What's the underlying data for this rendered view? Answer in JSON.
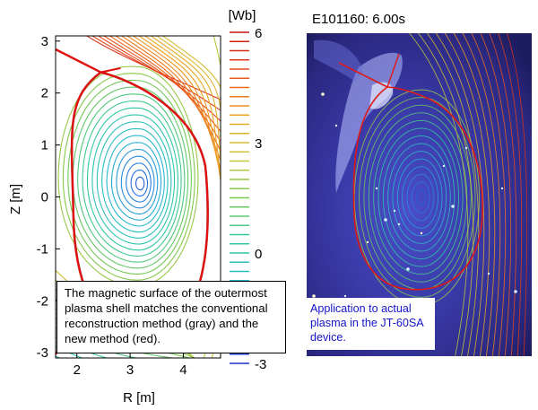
{
  "chart_data": [
    {
      "type": "contour",
      "panel": "equilibrium-flux-surfaces",
      "xlabel": "R [m]",
      "ylabel": "Z [m]",
      "xticks": [
        2,
        3,
        4
      ],
      "yticks": [
        3,
        2,
        1,
        0,
        -1,
        -2,
        -3
      ],
      "xlim": [
        1.6,
        4.7
      ],
      "ylim": [
        -3.1,
        3.1
      ],
      "magnetic_axis": {
        "R": 3.2,
        "Z": 0.25
      },
      "x_point": {
        "R": 2.45,
        "Z": 2.4
      },
      "series": [
        {
          "name": "conventional reconstruction",
          "color": "#808080"
        },
        {
          "name": "new method",
          "color": "#e01010"
        }
      ],
      "colorbar": {
        "unit": "[Wb]",
        "ticks": [
          6,
          3,
          0,
          -3
        ],
        "range": [
          -3,
          6
        ],
        "colors": [
          "#c81414",
          "#e8501e",
          "#f0a020",
          "#c8c83c",
          "#78c850",
          "#30c8a0",
          "#28b8d0",
          "#2878e0",
          "#2030c8"
        ]
      },
      "caption": "The magnetic surface of the outermost plasma shell matches the conventional reconstruction method (gray) and the new method (red)."
    },
    {
      "type": "image-overlay",
      "panel": "camera-image",
      "title": "E101160: 6.00s",
      "caption": "Application to actual plasma in the JT-60SA device."
    }
  ]
}
